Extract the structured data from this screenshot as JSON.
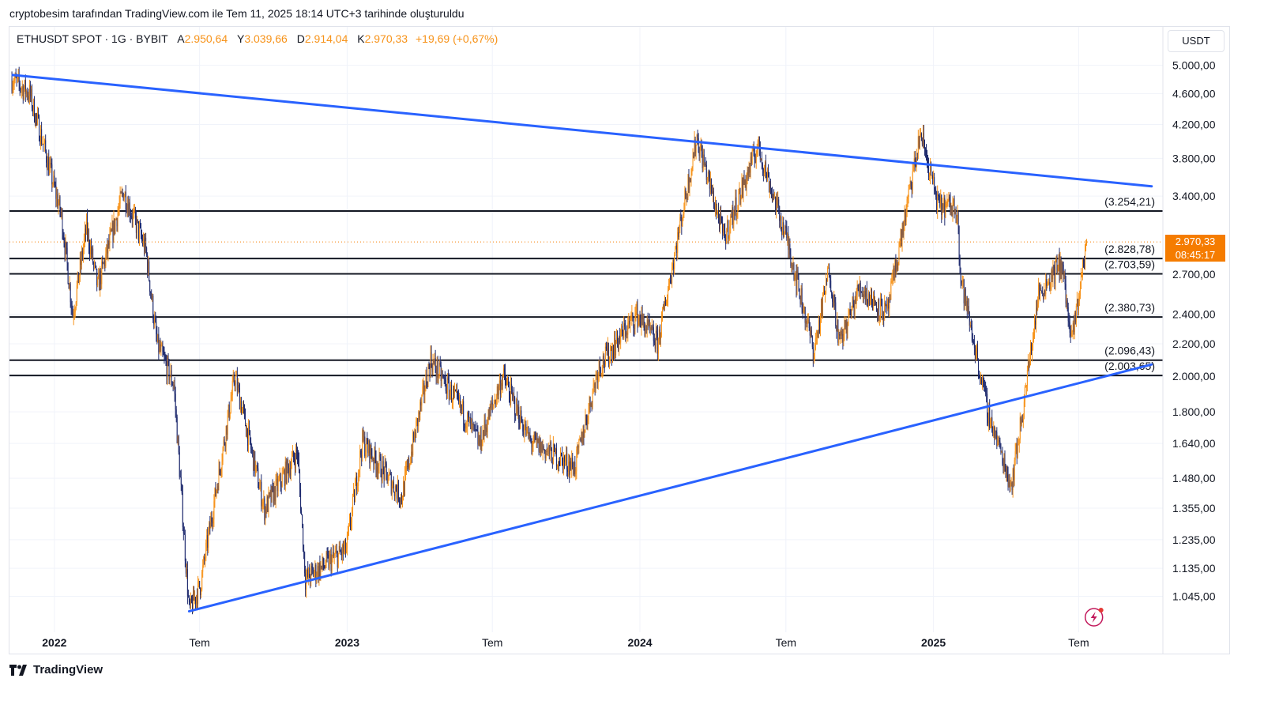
{
  "header": {
    "attribution": "cryptobesim tarafından TradingView.com ile Tem 11, 2025 18:14 UTC+3 tarihinde oluşturuldu"
  },
  "legend": {
    "symbol": "ETHUSDT SPOT · 1G · BYBIT",
    "open_label": "A",
    "open_value": "2.950,64",
    "high_label": "Y",
    "high_value": "3.039,66",
    "low_label": "D",
    "low_value": "2.914,04",
    "close_label": "K",
    "close_value": "2.970,33",
    "change": "+19,69 (+0,67%)"
  },
  "toolbar": {
    "currency_button": "USDT"
  },
  "price_tag": {
    "value": "2.970,33",
    "countdown": "08:45:17"
  },
  "footer": {
    "brand": "TradingView"
  },
  "colors": {
    "up": "#f7931a",
    "down": "#1e2a6e",
    "trendline": "#2962ff",
    "level": "#131722",
    "price_tag": "#f57c00",
    "grid": "#f0f3fa"
  },
  "chart_data": {
    "type": "candlestick",
    "scale": "log",
    "y_tick_labels": [
      "5.000,00",
      "4.600,00",
      "4.200,00",
      "3.800,00",
      "3.400,00",
      "2.700,00",
      "2.400,00",
      "2.200,00",
      "2.000,00",
      "1.800,00",
      "1.640,00",
      "1.480,00",
      "1.355,00",
      "1.235,00",
      "1.135,00",
      "1.045,00"
    ],
    "y_ticks": [
      5000,
      4600,
      4200,
      3800,
      3400,
      2700,
      2400,
      2200,
      2000,
      1800,
      1640,
      1480,
      1355,
      1235,
      1135,
      1045
    ],
    "ylim": [
      940,
      5600
    ],
    "x_tick_labels": [
      "2022",
      "Tem",
      "2023",
      "Tem",
      "2024",
      "Tem",
      "2025",
      "Tem"
    ],
    "x_ticks": [
      "2022-01-01",
      "2022-07-01",
      "2023-01-01",
      "2023-07-01",
      "2024-01-01",
      "2024-07-01",
      "2025-01-01",
      "2025-07-01"
    ],
    "xlim": [
      "2021-11-06",
      "2025-10-14"
    ],
    "horizontal_levels": [
      {
        "value": 3254.21,
        "label": "(3.254,21)"
      },
      {
        "value": 2828.78,
        "label": "(2.828,78)"
      },
      {
        "value": 2703.59,
        "label": "(2.703,59)"
      },
      {
        "value": 2380.73,
        "label": "(2.380,73)"
      },
      {
        "value": 2096.43,
        "label": "(2.096,43)"
      },
      {
        "value": 2003.65,
        "label": "(2.003,65)"
      }
    ],
    "trendlines": [
      {
        "from": {
          "x": "2021-11-10",
          "y": 4860
        },
        "to": {
          "x": "2025-09-30",
          "y": 3500
        }
      },
      {
        "from": {
          "x": "2022-06-18",
          "y": 1000
        },
        "to": {
          "x": "2025-09-30",
          "y": 2070
        }
      }
    ],
    "current_price": 2970.33,
    "price_path": [
      {
        "x": "2021-11-09",
        "y": 4800
      },
      {
        "x": "2021-12-01",
        "y": 4600
      },
      {
        "x": "2021-12-20",
        "y": 3900
      },
      {
        "x": "2022-01-10",
        "y": 3200
      },
      {
        "x": "2022-01-24",
        "y": 2400
      },
      {
        "x": "2022-02-10",
        "y": 3100
      },
      {
        "x": "2022-02-24",
        "y": 2600
      },
      {
        "x": "2022-03-28",
        "y": 3450
      },
      {
        "x": "2022-04-25",
        "y": 2900
      },
      {
        "x": "2022-05-09",
        "y": 2200
      },
      {
        "x": "2022-05-30",
        "y": 1950
      },
      {
        "x": "2022-06-18",
        "y": 1000
      },
      {
        "x": "2022-07-02",
        "y": 1080
      },
      {
        "x": "2022-08-14",
        "y": 2000
      },
      {
        "x": "2022-09-20",
        "y": 1350
      },
      {
        "x": "2022-10-31",
        "y": 1600
      },
      {
        "x": "2022-11-10",
        "y": 1100
      },
      {
        "x": "2022-12-31",
        "y": 1200
      },
      {
        "x": "2023-01-20",
        "y": 1650
      },
      {
        "x": "2023-03-10",
        "y": 1400
      },
      {
        "x": "2023-04-15",
        "y": 2100
      },
      {
        "x": "2023-05-25",
        "y": 1800
      },
      {
        "x": "2023-06-15",
        "y": 1640
      },
      {
        "x": "2023-07-14",
        "y": 2000
      },
      {
        "x": "2023-08-17",
        "y": 1650
      },
      {
        "x": "2023-10-12",
        "y": 1530
      },
      {
        "x": "2023-11-10",
        "y": 2050
      },
      {
        "x": "2023-12-28",
        "y": 2400
      },
      {
        "x": "2024-01-23",
        "y": 2200
      },
      {
        "x": "2024-03-12",
        "y": 4050
      },
      {
        "x": "2024-04-15",
        "y": 3000
      },
      {
        "x": "2024-05-27",
        "y": 3950
      },
      {
        "x": "2024-07-04",
        "y": 2950
      },
      {
        "x": "2024-08-05",
        "y": 2150
      },
      {
        "x": "2024-08-24",
        "y": 2750
      },
      {
        "x": "2024-09-06",
        "y": 2200
      },
      {
        "x": "2024-10-01",
        "y": 2600
      },
      {
        "x": "2024-11-04",
        "y": 2400
      },
      {
        "x": "2024-12-16",
        "y": 4100
      },
      {
        "x": "2025-01-07",
        "y": 3300
      },
      {
        "x": "2025-01-31",
        "y": 3300
      },
      {
        "x": "2025-02-03",
        "y": 2700
      },
      {
        "x": "2025-03-10",
        "y": 1800
      },
      {
        "x": "2025-04-08",
        "y": 1450
      },
      {
        "x": "2025-04-22",
        "y": 1800
      },
      {
        "x": "2025-05-12",
        "y": 2550
      },
      {
        "x": "2025-06-10",
        "y": 2800
      },
      {
        "x": "2025-06-22",
        "y": 2200
      },
      {
        "x": "2025-06-30",
        "y": 2500
      },
      {
        "x": "2025-07-11",
        "y": 2970
      }
    ]
  }
}
